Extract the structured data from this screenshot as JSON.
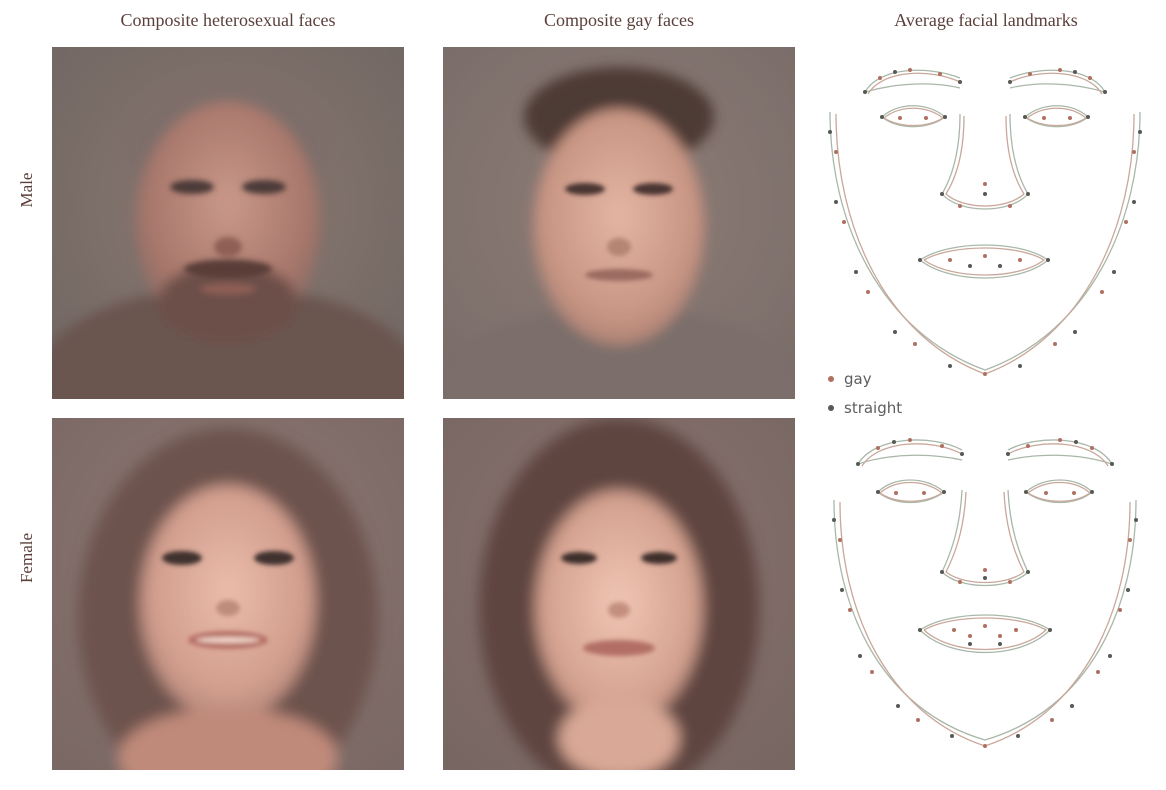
{
  "columns": {
    "heterosexual": "Composite heterosexual faces",
    "gay": "Composite gay faces",
    "landmarks": "Average facial landmarks"
  },
  "rows": {
    "male": "Male",
    "female": "Female"
  },
  "legend": {
    "gay": {
      "label": "gay",
      "color": "#b07060"
    },
    "straight": {
      "label": "straight",
      "color": "#555a55"
    }
  },
  "colors": {
    "gay_line": "#c9a79a",
    "straight_line": "#a9b7a9"
  },
  "images": {
    "male_heterosexual": "composite-face-male-heterosexual",
    "male_gay": "composite-face-male-gay",
    "female_heterosexual": "composite-face-female-heterosexual",
    "female_gay": "composite-face-female-gay"
  }
}
